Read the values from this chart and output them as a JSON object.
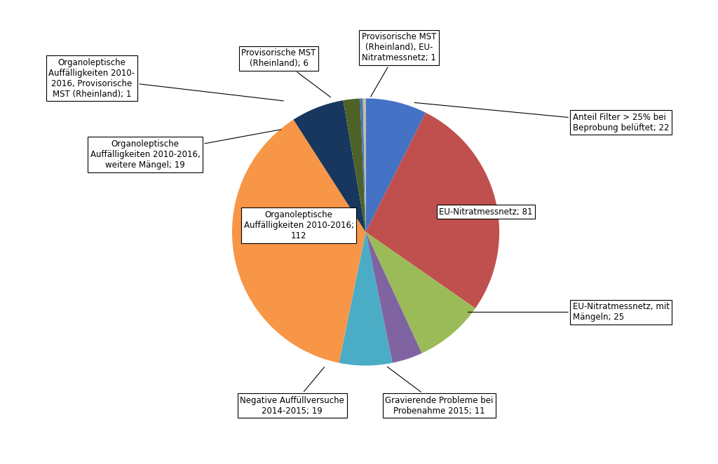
{
  "slices": [
    {
      "label": "Anteil Filter > 25% bei\nBeprobung belüftet; 22",
      "value": 22,
      "color": "#4472C4"
    },
    {
      "label": "EU-Nitratmessnetz; 81",
      "value": 81,
      "color": "#C0504D"
    },
    {
      "label": "EU-Nitratmessnetz, mit\nMängeln; 25",
      "value": 25,
      "color": "#9BBB59"
    },
    {
      "label": "Gravierende Probleme bei\nProbenahme 2015; 11",
      "value": 11,
      "color": "#8064A2"
    },
    {
      "label": "Negative Auffüllversuche\n2014-2015; 19",
      "value": 19,
      "color": "#4BACC6"
    },
    {
      "label": "Organoleptische\nAuffälligkeiten 2010-2016;\n112",
      "value": 112,
      "color": "#F79646"
    },
    {
      "label": "Organoleptische\nAuffälligkeiten 2010-2016,\nweitere Mängel; 19",
      "value": 19,
      "color": "#17375E"
    },
    {
      "label": "Provisorische MST\n(Rheinland); 6",
      "value": 6,
      "color": "#4E6228"
    },
    {
      "label": "Provisorische MST\n(Rheinland), EU-\nNitratmessnetz; 1",
      "value": 1,
      "color": "#4472C4"
    },
    {
      "label": "Organoleptische\nAuffälligkeiten 2010-\n2016, Provisorische\nMST (Rheinland); 1",
      "value": 1,
      "color": "#C4BD97"
    }
  ],
  "startangle": 90,
  "figsize": [
    10.24,
    6.62
  ],
  "dpi": 100,
  "background_color": "#FFFFFF",
  "fontsize": 8.5
}
